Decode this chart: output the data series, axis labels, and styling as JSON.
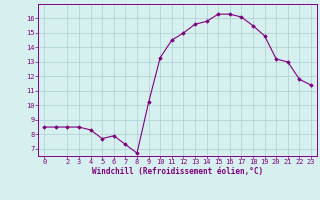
{
  "x": [
    0,
    1,
    2,
    3,
    4,
    5,
    6,
    7,
    8,
    9,
    10,
    11,
    12,
    13,
    14,
    15,
    16,
    17,
    18,
    19,
    20,
    21,
    22,
    23
  ],
  "y": [
    8.5,
    8.5,
    8.5,
    8.5,
    8.3,
    7.7,
    7.9,
    7.3,
    6.7,
    10.2,
    13.3,
    14.5,
    15.0,
    15.6,
    15.8,
    16.3,
    16.3,
    16.1,
    15.5,
    14.8,
    13.2,
    13.0,
    11.8,
    11.4
  ],
  "line_color": "#800080",
  "marker": "D",
  "marker_size": 1.8,
  "bg_color": "#d6f0f0",
  "grid_color": "#aacfcf",
  "xlabel": "Windchill (Refroidissement éolien,°C)",
  "xlabel_color": "#800080",
  "tick_color": "#800080",
  "ylim": [
    6.5,
    17.0
  ],
  "xlim": [
    -0.5,
    23.5
  ],
  "yticks": [
    7,
    8,
    9,
    10,
    11,
    12,
    13,
    14,
    15,
    16
  ],
  "xticks": [
    0,
    2,
    3,
    4,
    5,
    6,
    7,
    8,
    9,
    10,
    11,
    12,
    13,
    14,
    15,
    16,
    17,
    18,
    19,
    20,
    21,
    22,
    23
  ],
  "xlabel_fontsize": 5.5,
  "tick_fontsize": 5.0
}
